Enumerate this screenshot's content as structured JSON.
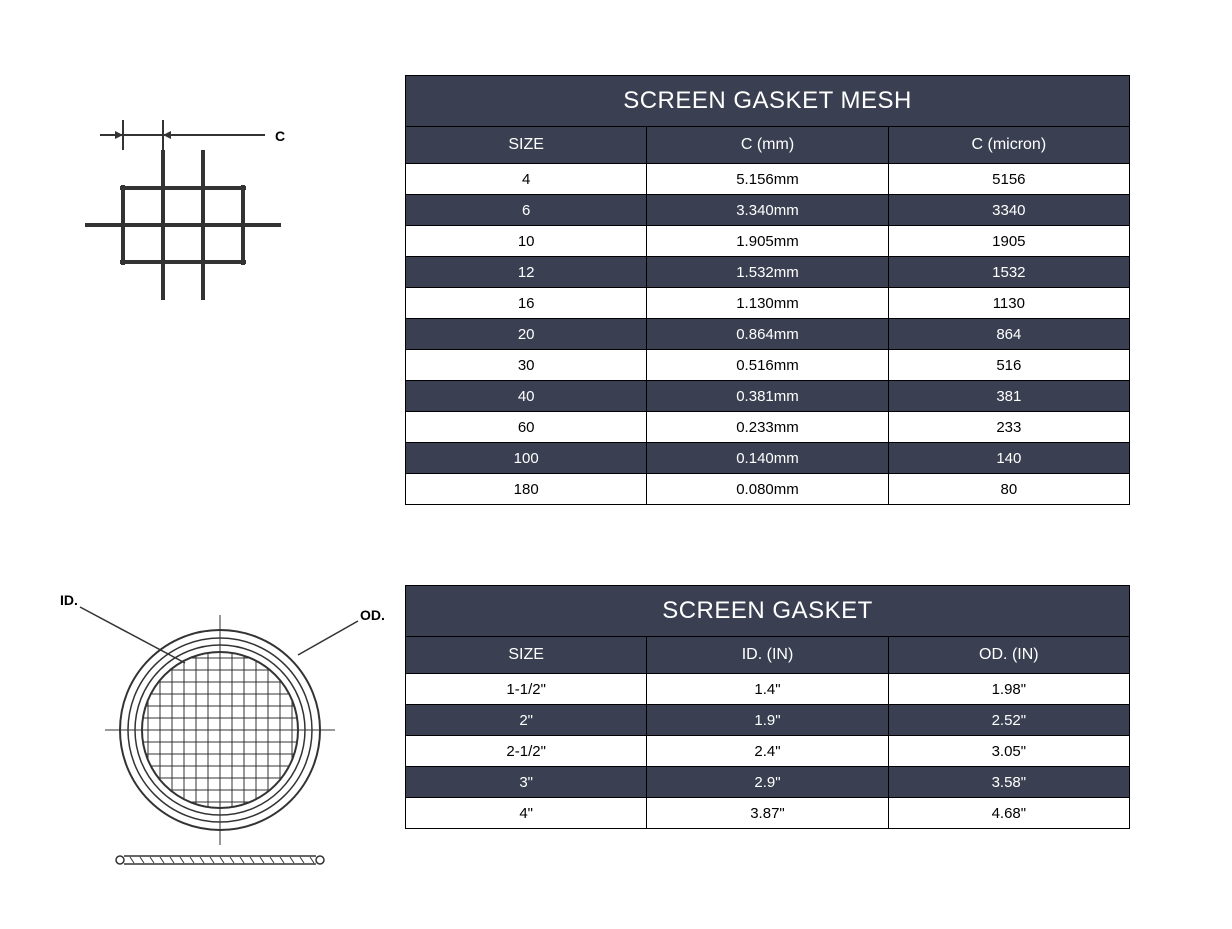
{
  "colors": {
    "table_dark": "#3a4052",
    "table_light": "#ffffff",
    "text_light": "#ffffff",
    "text_dark": "#000000",
    "border": "#000000",
    "diagram_stroke": "#333333"
  },
  "mesh_diagram": {
    "label_c": "C"
  },
  "mesh_table": {
    "title": "SCREEN GASKET MESH",
    "columns": [
      "SIZE",
      "C (mm)",
      "C (micron)"
    ],
    "rows": [
      [
        "4",
        "5.156mm",
        "5156"
      ],
      [
        "6",
        "3.340mm",
        "3340"
      ],
      [
        "10",
        "1.905mm",
        "1905"
      ],
      [
        "12",
        "1.532mm",
        "1532"
      ],
      [
        "16",
        "1.130mm",
        "1130"
      ],
      [
        "20",
        "0.864mm",
        "864"
      ],
      [
        "30",
        "0.516mm",
        "516"
      ],
      [
        "40",
        "0.381mm",
        "381"
      ],
      [
        "60",
        "0.233mm",
        "233"
      ],
      [
        "100",
        "0.140mm",
        "140"
      ],
      [
        "180",
        "0.080mm",
        "80"
      ]
    ]
  },
  "gasket_diagram": {
    "label_id": "ID.",
    "label_od": "OD."
  },
  "gasket_table": {
    "title": "SCREEN GASKET",
    "columns": [
      "SIZE",
      "ID. (IN)",
      "OD. (IN)"
    ],
    "rows": [
      [
        "1-1/2\"",
        "1.4\"",
        "1.98\""
      ],
      [
        "2\"",
        "1.9\"",
        "2.52\""
      ],
      [
        "2-1/2\"",
        "2.4\"",
        "3.05\""
      ],
      [
        "3\"",
        "2.9\"",
        "3.58\""
      ],
      [
        "4\"",
        "3.87\"",
        "4.68\""
      ]
    ]
  }
}
